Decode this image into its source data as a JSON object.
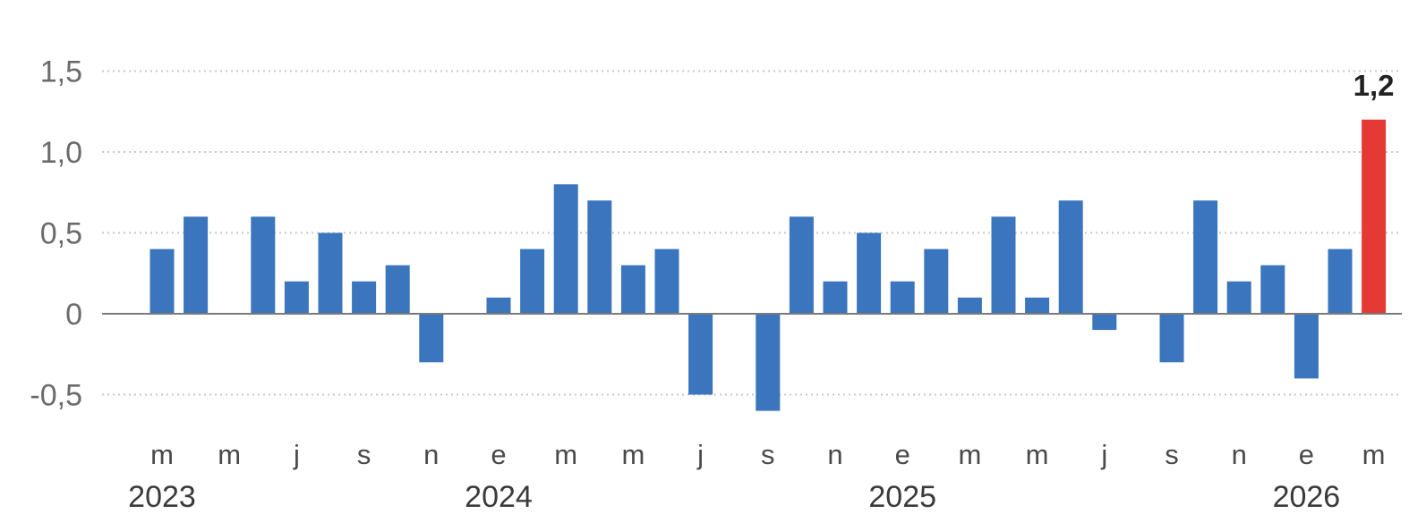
{
  "chart_data": {
    "type": "bar",
    "ylim": [
      -0.7,
      1.6
    ],
    "yticks": [
      {
        "value": 1.5,
        "label": "1,5"
      },
      {
        "value": 1.0,
        "label": "1,0"
      },
      {
        "value": 0.5,
        "label": "0,5"
      },
      {
        "value": 0,
        "label": "0"
      },
      {
        "value": -0.5,
        "label": "-0,5"
      }
    ],
    "grid": true,
    "colors": {
      "bar": "#3a75bd",
      "highlight": "#e53935",
      "grid": "#c8c8c8",
      "zero": "#7a7a7a"
    },
    "series": [
      {
        "values": [
          0.4,
          0.6,
          0,
          0.6,
          0.2,
          0.5,
          0.2,
          0.3,
          -0.3,
          0,
          0.1,
          0.4,
          0.8,
          0.7,
          0.3,
          0.4,
          -0.5,
          0,
          -0.6,
          0.6,
          0.2,
          0.5,
          0.2,
          0.4,
          0.1,
          0.6,
          0.1,
          0.7,
          -0.1,
          0,
          -0.3,
          0.7,
          0.2,
          0.3,
          -0.4,
          0.4,
          1.2
        ]
      }
    ],
    "highlight_index": 36,
    "data_label": {
      "index": 36,
      "text": "1,2"
    },
    "x_tick_labels": [
      {
        "index": 0,
        "label": "m"
      },
      {
        "index": 2,
        "label": "m"
      },
      {
        "index": 4,
        "label": "j"
      },
      {
        "index": 6,
        "label": "s"
      },
      {
        "index": 8,
        "label": "n"
      },
      {
        "index": 10,
        "label": "e"
      },
      {
        "index": 12,
        "label": "m"
      },
      {
        "index": 14,
        "label": "m"
      },
      {
        "index": 16,
        "label": "j"
      },
      {
        "index": 18,
        "label": "s"
      },
      {
        "index": 20,
        "label": "n"
      },
      {
        "index": 22,
        "label": "e"
      },
      {
        "index": 24,
        "label": "m"
      },
      {
        "index": 26,
        "label": "m"
      },
      {
        "index": 28,
        "label": "j"
      },
      {
        "index": 30,
        "label": "s"
      },
      {
        "index": 32,
        "label": "n"
      },
      {
        "index": 34,
        "label": "e"
      },
      {
        "index": 36,
        "label": "m"
      }
    ],
    "year_labels": [
      {
        "index": 0,
        "label": "2023"
      },
      {
        "index": 10,
        "label": "2024"
      },
      {
        "index": 22,
        "label": "2025"
      },
      {
        "index": 34,
        "label": "2026"
      }
    ]
  }
}
